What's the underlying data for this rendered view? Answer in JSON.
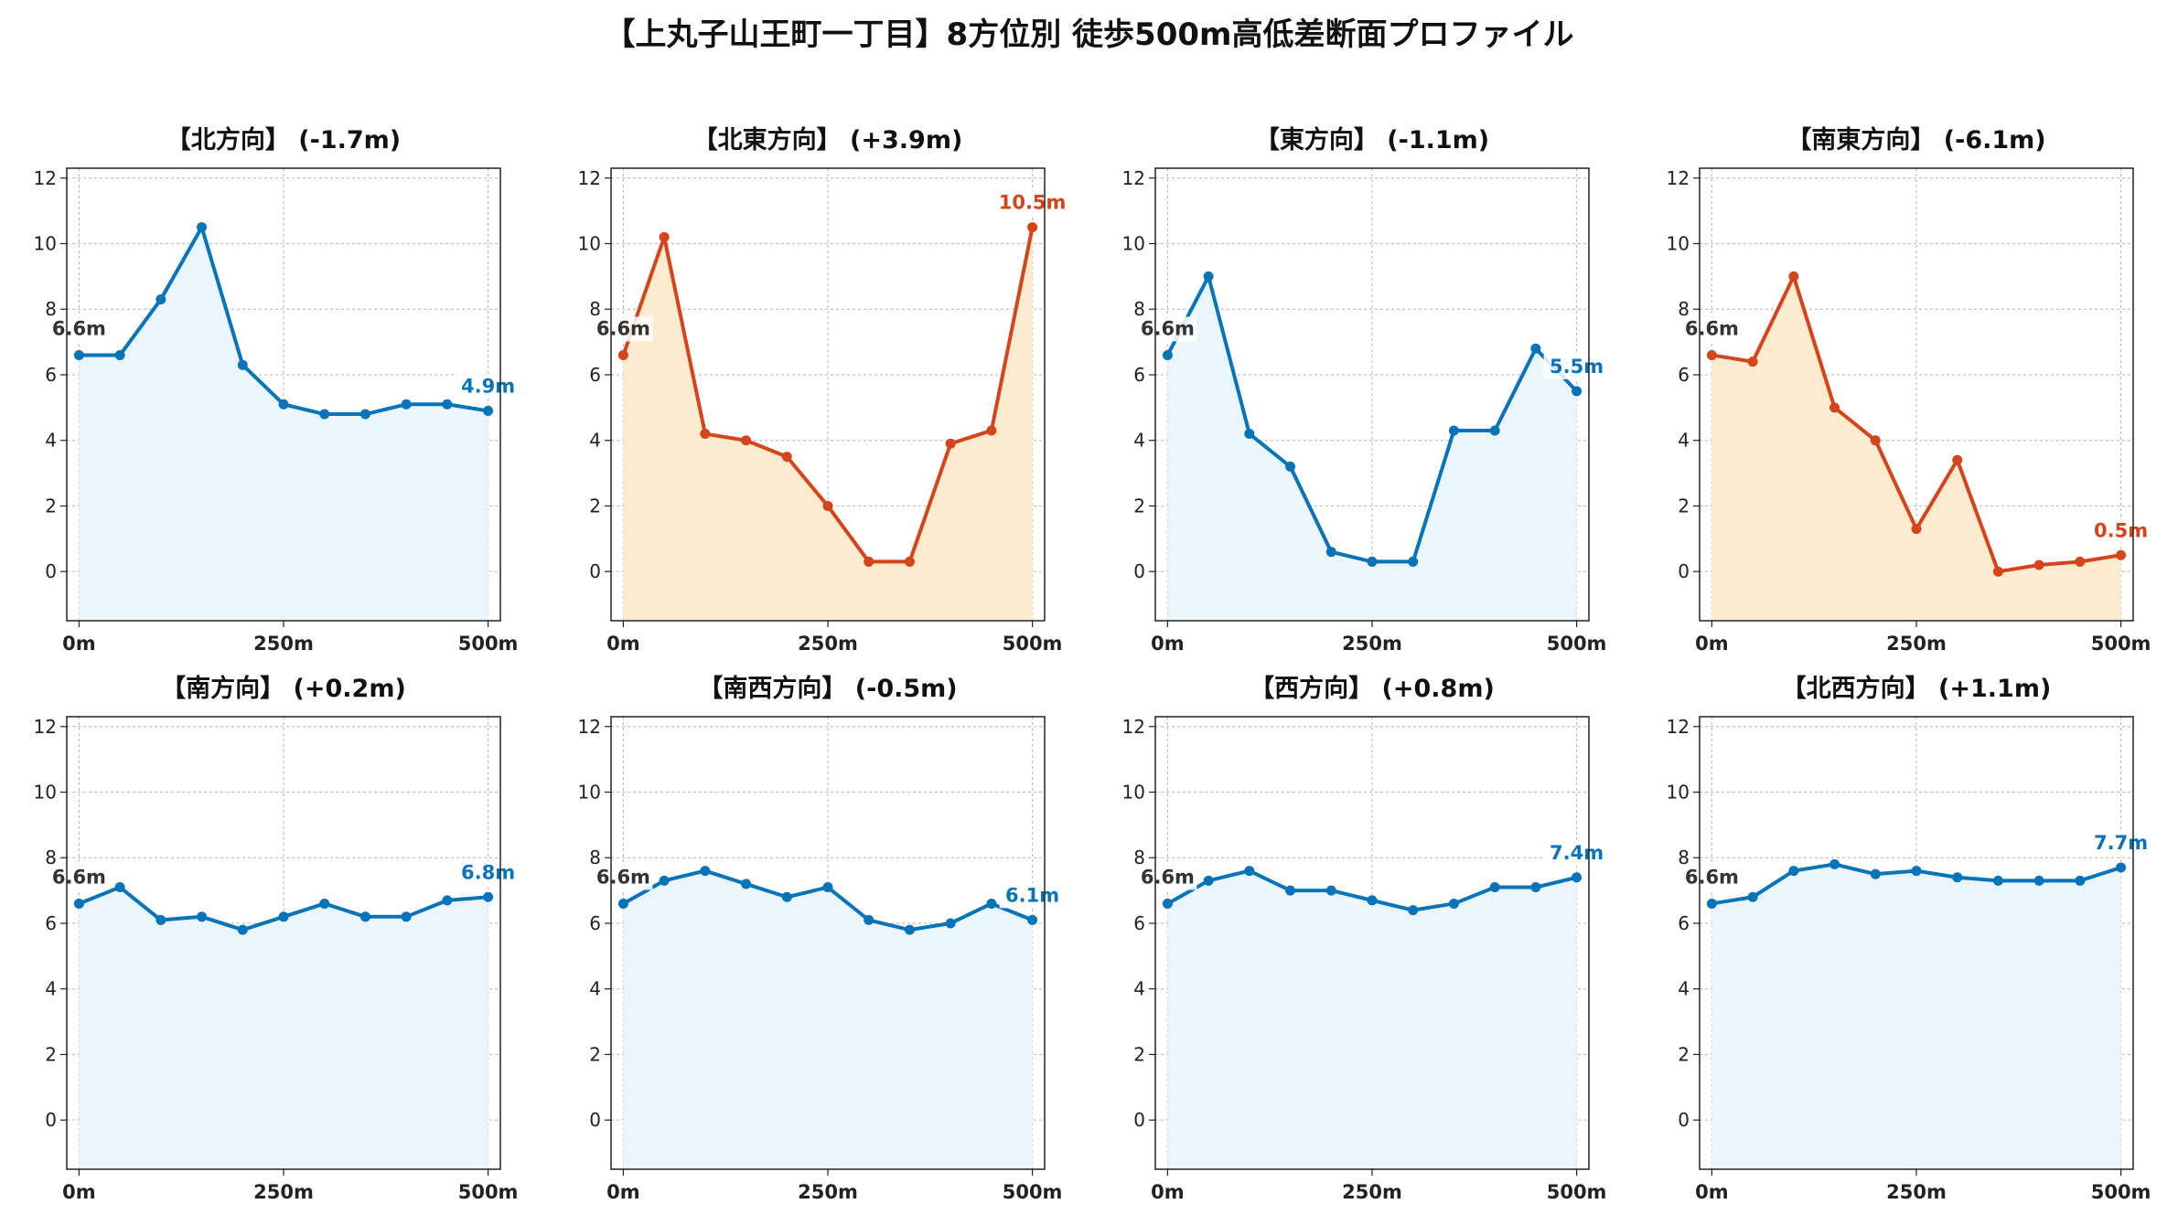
{
  "title": "【上丸子山王町一丁目】8方位別 徒歩500m高低差断面プロファイル",
  "colors": {
    "down_or_flat_line": "#0773b8",
    "down_or_flat_fill": "#eaf6fc",
    "up_line": "#d5441a",
    "up_fill": "#fdebd0",
    "start_label": "#333333",
    "grid": "#c0c0c0"
  },
  "chart_data": [
    {
      "type": "area",
      "title": "【北方向】 (-1.7m)",
      "color_scheme": "blue",
      "x": [
        0,
        50,
        100,
        150,
        200,
        250,
        300,
        350,
        400,
        450,
        500
      ],
      "values": [
        6.6,
        6.6,
        8.3,
        10.5,
        6.3,
        5.1,
        4.8,
        4.8,
        5.1,
        5.1,
        4.9
      ],
      "start_label": "6.6m",
      "end_label": "4.9m",
      "xticks": [
        "0m",
        "250m",
        "500m"
      ],
      "yticks": [
        0,
        2,
        4,
        6,
        8,
        10,
        12
      ],
      "xlim": [
        -15,
        515
      ],
      "ylim": [
        -1.5,
        12.3
      ],
      "grid": true
    },
    {
      "type": "area",
      "title": "【北東方向】 (+3.9m)",
      "color_scheme": "orange",
      "x": [
        0,
        50,
        100,
        150,
        200,
        250,
        300,
        350,
        400,
        450,
        500
      ],
      "values": [
        6.6,
        10.2,
        4.2,
        4.0,
        3.5,
        2.0,
        0.3,
        0.3,
        3.9,
        4.3,
        10.5
      ],
      "start_label": "6.6m",
      "end_label": "10.5m",
      "xticks": [
        "0m",
        "250m",
        "500m"
      ],
      "yticks": [
        0,
        2,
        4,
        6,
        8,
        10,
        12
      ],
      "xlim": [
        -15,
        515
      ],
      "ylim": [
        -1.5,
        12.3
      ],
      "grid": true
    },
    {
      "type": "area",
      "title": "【東方向】 (-1.1m)",
      "color_scheme": "blue",
      "x": [
        0,
        50,
        100,
        150,
        200,
        250,
        300,
        350,
        400,
        450,
        500
      ],
      "values": [
        6.6,
        9.0,
        4.2,
        3.2,
        0.6,
        0.3,
        0.3,
        4.3,
        4.3,
        6.8,
        5.5
      ],
      "start_label": "6.6m",
      "end_label": "5.5m",
      "xticks": [
        "0m",
        "250m",
        "500m"
      ],
      "yticks": [
        0,
        2,
        4,
        6,
        8,
        10,
        12
      ],
      "xlim": [
        -15,
        515
      ],
      "ylim": [
        -1.5,
        12.3
      ],
      "grid": true
    },
    {
      "type": "area",
      "title": "【南東方向】 (-6.1m)",
      "color_scheme": "orange",
      "x": [
        0,
        50,
        100,
        150,
        200,
        250,
        300,
        350,
        400,
        450,
        500
      ],
      "values": [
        6.6,
        6.4,
        9.0,
        5.0,
        4.0,
        1.3,
        3.4,
        0.0,
        0.2,
        0.3,
        0.5
      ],
      "start_label": "6.6m",
      "end_label": "0.5m",
      "xticks": [
        "0m",
        "250m",
        "500m"
      ],
      "yticks": [
        0,
        2,
        4,
        6,
        8,
        10,
        12
      ],
      "xlim": [
        -15,
        515
      ],
      "ylim": [
        -1.5,
        12.3
      ],
      "grid": true
    },
    {
      "type": "area",
      "title": "【南方向】 (+0.2m)",
      "color_scheme": "blue",
      "x": [
        0,
        50,
        100,
        150,
        200,
        250,
        300,
        350,
        400,
        450,
        500
      ],
      "values": [
        6.6,
        7.1,
        6.1,
        6.2,
        5.8,
        6.2,
        6.6,
        6.2,
        6.2,
        6.7,
        6.8
      ],
      "start_label": "6.6m",
      "end_label": "6.8m",
      "xticks": [
        "0m",
        "250m",
        "500m"
      ],
      "yticks": [
        0,
        2,
        4,
        6,
        8,
        10,
        12
      ],
      "xlim": [
        -15,
        515
      ],
      "ylim": [
        -1.5,
        12.3
      ],
      "grid": true
    },
    {
      "type": "area",
      "title": "【南西方向】 (-0.5m)",
      "color_scheme": "blue",
      "x": [
        0,
        50,
        100,
        150,
        200,
        250,
        300,
        350,
        400,
        450,
        500
      ],
      "values": [
        6.6,
        7.3,
        7.6,
        7.2,
        6.8,
        7.1,
        6.1,
        5.8,
        6.0,
        6.6,
        6.1
      ],
      "start_label": "6.6m",
      "end_label": "6.1m",
      "xticks": [
        "0m",
        "250m",
        "500m"
      ],
      "yticks": [
        0,
        2,
        4,
        6,
        8,
        10,
        12
      ],
      "xlim": [
        -15,
        515
      ],
      "ylim": [
        -1.5,
        12.3
      ],
      "grid": true
    },
    {
      "type": "area",
      "title": "【西方向】 (+0.8m)",
      "color_scheme": "blue",
      "x": [
        0,
        50,
        100,
        150,
        200,
        250,
        300,
        350,
        400,
        450,
        500
      ],
      "values": [
        6.6,
        7.3,
        7.6,
        7.0,
        7.0,
        6.7,
        6.4,
        6.6,
        7.1,
        7.1,
        7.4
      ],
      "start_label": "6.6m",
      "end_label": "7.4m",
      "xticks": [
        "0m",
        "250m",
        "500m"
      ],
      "yticks": [
        0,
        2,
        4,
        6,
        8,
        10,
        12
      ],
      "xlim": [
        -15,
        515
      ],
      "ylim": [
        -1.5,
        12.3
      ],
      "grid": true
    },
    {
      "type": "area",
      "title": "【北西方向】 (+1.1m)",
      "color_scheme": "blue",
      "x": [
        0,
        50,
        100,
        150,
        200,
        250,
        300,
        350,
        400,
        450,
        500
      ],
      "values": [
        6.6,
        6.8,
        7.6,
        7.8,
        7.5,
        7.6,
        7.4,
        7.3,
        7.3,
        7.3,
        7.7
      ],
      "start_label": "6.6m",
      "end_label": "7.7m",
      "xticks": [
        "0m",
        "250m",
        "500m"
      ],
      "yticks": [
        0,
        2,
        4,
        6,
        8,
        10,
        12
      ],
      "xlim": [
        -15,
        515
      ],
      "ylim": [
        -1.5,
        12.3
      ],
      "grid": true
    }
  ]
}
